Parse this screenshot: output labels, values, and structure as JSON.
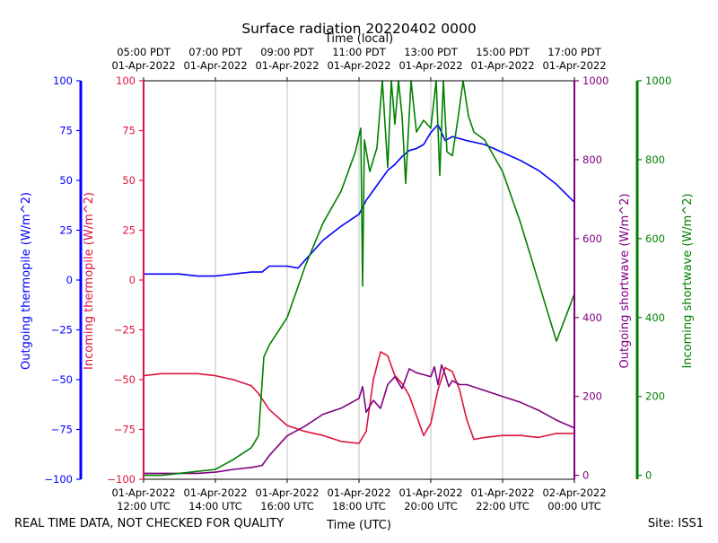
{
  "chart_data": {
    "type": "line",
    "title": "Surface radiation 20220402 0000",
    "top_xlabel": "Time (local)",
    "xlabel": "Time (UTC)",
    "footer_left": "REAL TIME DATA, NOT CHECKED FOR QUALITY",
    "footer_right": "Site: ISS1",
    "x_hours_utc": [
      12,
      14,
      16,
      18,
      20,
      22,
      24
    ],
    "xlim": [
      12,
      24
    ],
    "bottom_ticks": [
      {
        "date": "01-Apr-2022",
        "time": "12:00 UTC"
      },
      {
        "date": "01-Apr-2022",
        "time": "14:00 UTC"
      },
      {
        "date": "01-Apr-2022",
        "time": "16:00 UTC"
      },
      {
        "date": "01-Apr-2022",
        "time": "18:00 UTC"
      },
      {
        "date": "01-Apr-2022",
        "time": "20:00 UTC"
      },
      {
        "date": "01-Apr-2022",
        "time": "22:00 UTC"
      },
      {
        "date": "02-Apr-2022",
        "time": "00:00 UTC"
      }
    ],
    "top_ticks": [
      {
        "time": "05:00 PDT",
        "date": "01-Apr-2022"
      },
      {
        "time": "07:00 PDT",
        "date": "01-Apr-2022"
      },
      {
        "time": "09:00 PDT",
        "date": "01-Apr-2022"
      },
      {
        "time": "11:00 PDT",
        "date": "01-Apr-2022"
      },
      {
        "time": "13:00 PDT",
        "date": "01-Apr-2022"
      },
      {
        "time": "15:00 PDT",
        "date": "01-Apr-2022"
      },
      {
        "time": "17:00 PDT",
        "date": "01-Apr-2022"
      }
    ],
    "axes": {
      "outgoing_thermopile": {
        "label": "Outgoing thermopile (W/m^2)",
        "color": "#0000ff",
        "ylim": [
          -100,
          100
        ],
        "ticks": [
          "100",
          "75",
          "50",
          "25",
          "0",
          "−25",
          "−50",
          "−75",
          "−100"
        ]
      },
      "incoming_thermopile": {
        "label": "Incoming thermopile (W/m^2)",
        "color": "#dc143c",
        "ylim": [
          -100,
          100
        ],
        "ticks": [
          "100",
          "75",
          "50",
          "25",
          "0",
          "−25",
          "−50",
          "−75",
          "−100"
        ]
      },
      "outgoing_shortwave": {
        "label": "Outgoing shortwave (W/m^2)",
        "color": "#800080",
        "ylim": [
          -10,
          1000
        ],
        "ticks": [
          "1000",
          "800",
          "600",
          "400",
          "200",
          "0"
        ]
      },
      "incoming_shortwave": {
        "label": "Incoming shortwave (W/m^2)",
        "color": "#008000",
        "ylim": [
          -10,
          1000
        ],
        "ticks": [
          "1000",
          "800",
          "600",
          "400",
          "200",
          "0"
        ]
      }
    },
    "series": [
      {
        "name": "Outgoing thermopile",
        "axis": "outgoing_thermopile",
        "color": "#0000ff",
        "x": [
          12.0,
          12.5,
          13.0,
          13.5,
          14.0,
          14.5,
          15.0,
          15.3,
          15.5,
          16.0,
          16.3,
          16.5,
          17.0,
          17.5,
          18.0,
          18.2,
          18.4,
          18.6,
          18.8,
          19.0,
          19.2,
          19.4,
          19.6,
          19.8,
          20.0,
          20.2,
          20.4,
          20.6,
          20.8,
          21.0,
          21.5,
          22.0,
          22.5,
          23.0,
          23.5,
          24.0
        ],
        "y": [
          3,
          3,
          3,
          2,
          2,
          3,
          4,
          4,
          7,
          7,
          6,
          10,
          20,
          27,
          33,
          40,
          45,
          50,
          55,
          58,
          62,
          65,
          66,
          68,
          74,
          78,
          70,
          72,
          71,
          70,
          68,
          64,
          60,
          55,
          48,
          39
        ]
      },
      {
        "name": "Incoming thermopile",
        "axis": "incoming_thermopile",
        "color": "#dc143c",
        "x": [
          12.0,
          12.5,
          13.0,
          13.5,
          14.0,
          14.5,
          15.0,
          15.2,
          15.5,
          16.0,
          16.5,
          17.0,
          17.5,
          18.0,
          18.2,
          18.4,
          18.6,
          18.8,
          19.0,
          19.2,
          19.4,
          19.6,
          19.8,
          20.0,
          20.2,
          20.4,
          20.6,
          20.8,
          21.0,
          21.2,
          21.5,
          22.0,
          22.5,
          23.0,
          23.5,
          24.0
        ],
        "y": [
          -48,
          -47,
          -47,
          -47,
          -48,
          -50,
          -53,
          -57,
          -65,
          -73,
          -76,
          -78,
          -81,
          -82,
          -76,
          -50,
          -36,
          -38,
          -48,
          -52,
          -58,
          -68,
          -78,
          -72,
          -55,
          -44,
          -46,
          -55,
          -70,
          -80,
          -79,
          -78,
          -78,
          -79,
          -77,
          -77
        ]
      },
      {
        "name": "Outgoing shortwave",
        "axis": "outgoing_shortwave",
        "color": "#800080",
        "x": [
          12.0,
          12.5,
          13.0,
          13.5,
          14.0,
          14.5,
          15.0,
          15.3,
          15.5,
          16.0,
          16.5,
          17.0,
          17.5,
          18.0,
          18.1,
          18.2,
          18.4,
          18.6,
          18.8,
          19.0,
          19.2,
          19.4,
          19.6,
          19.8,
          20.0,
          20.1,
          20.2,
          20.3,
          20.4,
          20.5,
          20.6,
          20.8,
          21.0,
          21.5,
          22.0,
          22.5,
          23.0,
          23.5,
          24.0
        ],
        "y": [
          5,
          5,
          5,
          5,
          8,
          15,
          20,
          25,
          50,
          100,
          125,
          155,
          170,
          195,
          225,
          160,
          190,
          170,
          230,
          250,
          220,
          270,
          260,
          255,
          250,
          275,
          230,
          280,
          255,
          225,
          240,
          230,
          230,
          215,
          200,
          185,
          165,
          140,
          120
        ]
      },
      {
        "name": "Incoming shortwave",
        "axis": "incoming_shortwave",
        "color": "#008000",
        "x": [
          12.0,
          12.5,
          13.0,
          13.5,
          14.0,
          14.5,
          15.0,
          15.2,
          15.35,
          15.5,
          16.0,
          16.5,
          17.0,
          17.5,
          17.9,
          18.05,
          18.1,
          18.15,
          18.3,
          18.5,
          18.65,
          18.8,
          18.9,
          19.0,
          19.1,
          19.2,
          19.3,
          19.45,
          19.6,
          19.8,
          20.0,
          20.15,
          20.25,
          20.35,
          20.45,
          20.6,
          20.75,
          20.9,
          21.05,
          21.2,
          21.5,
          22.0,
          22.5,
          23.0,
          23.5,
          24.0
        ],
        "y": [
          0,
          0,
          5,
          10,
          15,
          40,
          70,
          100,
          300,
          330,
          400,
          530,
          640,
          720,
          820,
          880,
          480,
          850,
          770,
          830,
          1000,
          780,
          1000,
          890,
          1000,
          910,
          740,
          1000,
          870,
          900,
          880,
          1000,
          760,
          1000,
          820,
          810,
          900,
          1000,
          910,
          870,
          850,
          770,
          640,
          490,
          340,
          460
        ]
      }
    ]
  }
}
